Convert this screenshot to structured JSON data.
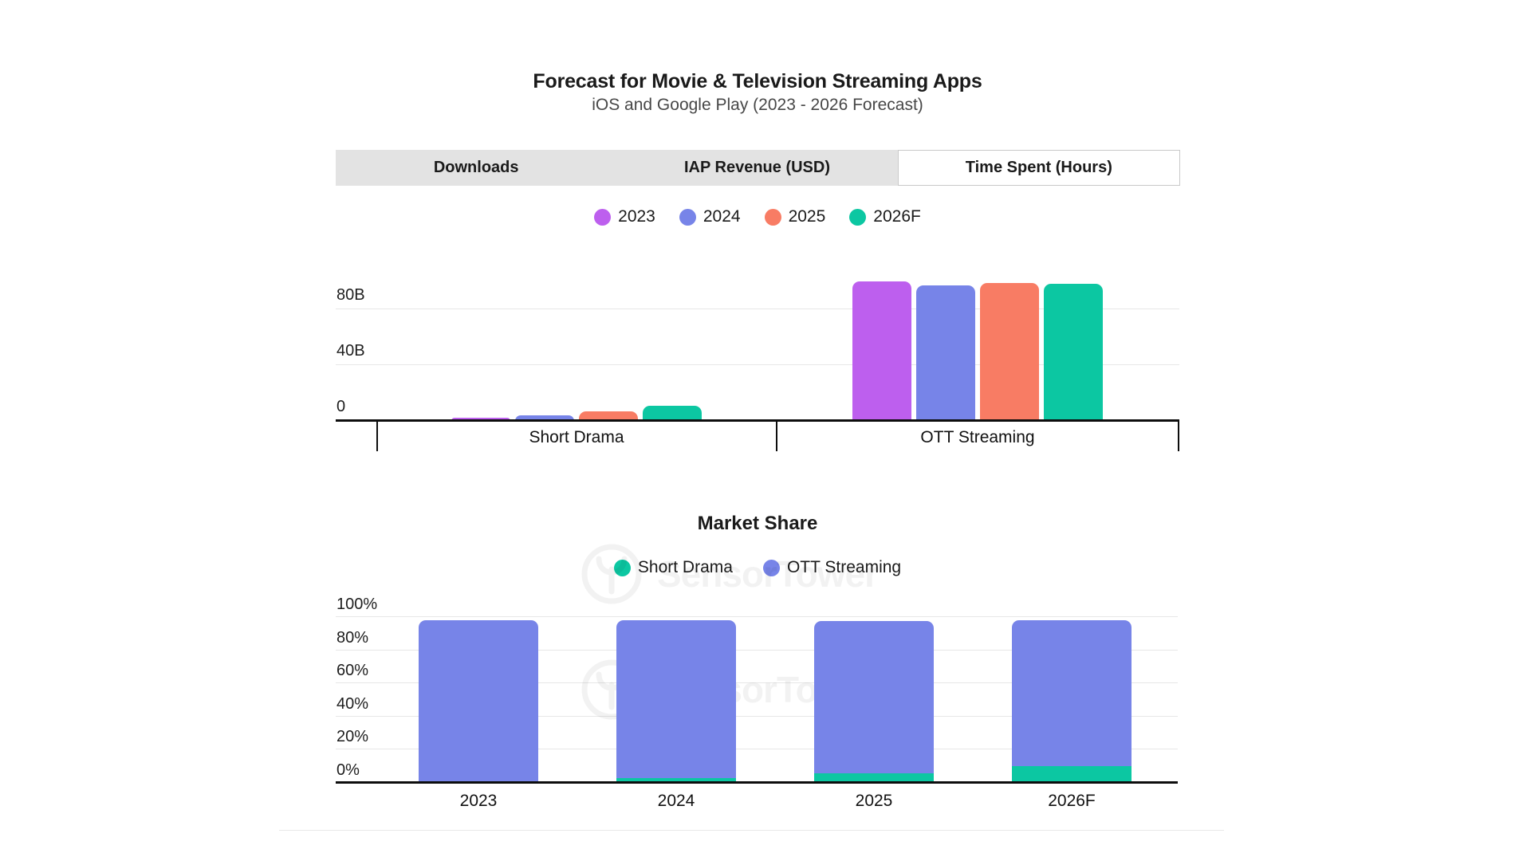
{
  "header": {
    "title": "Forecast for Movie & Television Streaming Apps",
    "subtitle": "iOS and Google Play (2023 - 2026 Forecast)"
  },
  "tabs": [
    {
      "label": "Downloads",
      "active": false
    },
    {
      "label": "IAP Revenue (USD)",
      "active": false
    },
    {
      "label": "Time Spent (Hours)",
      "active": true
    }
  ],
  "watermark": {
    "text": "SensorTower"
  },
  "colors": {
    "y2023": "#bd5fee",
    "y2024": "#7784e8",
    "y2025": "#f87c64",
    "y2026f": "#0cc7a2",
    "tab_inactive_bg": "#e3e3e3",
    "tab_active_bg": "#ffffff",
    "gridline": "#e7e7e7",
    "axis": "#0d0d0d"
  },
  "chart_data": [
    {
      "type": "bar",
      "title": "",
      "metric": "Time Spent (Hours)",
      "categories": [
        "Short Drama",
        "OTT Streaming"
      ],
      "series": [
        {
          "name": "2023",
          "color": "#bd5fee",
          "values": [
            2,
            100
          ]
        },
        {
          "name": "2024",
          "color": "#7784e8",
          "values": [
            4,
            97
          ]
        },
        {
          "name": "2025",
          "color": "#f87c64",
          "values": [
            7,
            99
          ]
        },
        {
          "name": "2026F",
          "color": "#0cc7a2",
          "values": [
            11,
            98
          ]
        }
      ],
      "unit": "B",
      "yticks": [
        {
          "label": "0",
          "value": 0
        },
        {
          "label": "40B",
          "value": 40
        },
        {
          "label": "80B",
          "value": 80
        }
      ],
      "ylim": [
        0,
        107
      ],
      "grid": true,
      "legend_position": "top"
    },
    {
      "type": "bar",
      "stacked": true,
      "title": "Market Share",
      "categories": [
        "2023",
        "2024",
        "2025",
        "2026F"
      ],
      "series": [
        {
          "name": "Short Drama",
          "color": "#0cc7a2",
          "values": [
            1,
            3,
            6,
            10
          ]
        },
        {
          "name": "OTT Streaming",
          "color": "#7784e8",
          "values": [
            97,
            95,
            92,
            88
          ]
        }
      ],
      "unit": "%",
      "yticks": [
        {
          "label": "0%",
          "value": 0
        },
        {
          "label": "20%",
          "value": 20
        },
        {
          "label": "40%",
          "value": 40
        },
        {
          "label": "60%",
          "value": 60
        },
        {
          "label": "80%",
          "value": 80
        },
        {
          "label": "100%",
          "value": 100
        }
      ],
      "ylim": [
        0,
        100
      ],
      "grid": true,
      "legend_position": "top"
    }
  ]
}
